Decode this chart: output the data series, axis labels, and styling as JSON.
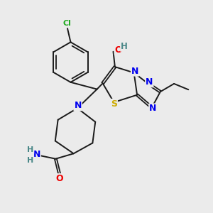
{
  "background_color": "#ebebeb",
  "bond_color": "#1a1a1a",
  "atom_colors": {
    "N": "#0000ee",
    "O": "#ee0000",
    "S": "#ccaa00",
    "Cl": "#22aa22",
    "H": "#4a8888",
    "C": "#1a1a1a"
  },
  "figsize": [
    3.0,
    3.0
  ],
  "dpi": 100
}
